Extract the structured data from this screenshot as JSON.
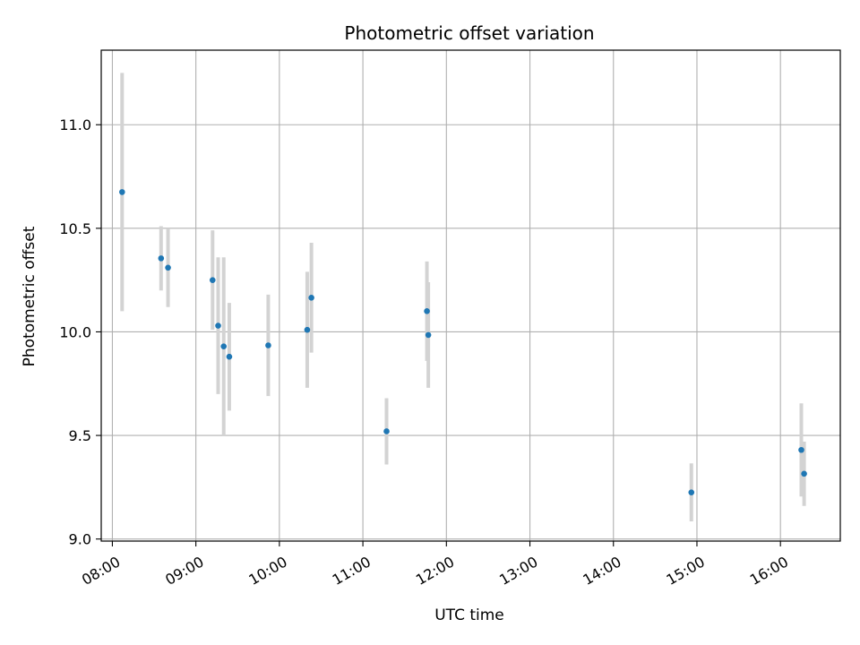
{
  "chart_data": {
    "type": "scatter",
    "title": "Photometric offset variation",
    "xlabel": "UTC time",
    "ylabel": "Photometric offset",
    "grid": true,
    "legend": "none",
    "xlim": [
      "07:52",
      "16:43"
    ],
    "ylim": [
      8.99,
      11.36
    ],
    "x_ticks": [
      "08:00",
      "09:00",
      "10:00",
      "11:00",
      "12:00",
      "13:00",
      "14:00",
      "15:00",
      "16:00"
    ],
    "y_ticks": [
      9.0,
      9.5,
      10.0,
      10.5,
      11.0
    ],
    "y_tick_labels": [
      "9.0",
      "9.5",
      "10.0",
      "10.5",
      "11.0"
    ],
    "colors": {
      "point": "#1f77b4",
      "errorbar": "#d3d3d3",
      "grid": "#b0b0b0"
    },
    "points": [
      {
        "x": "08:07",
        "y": 10.675,
        "yerr": 0.575
      },
      {
        "x": "08:35",
        "y": 10.355,
        "yerr": 0.155
      },
      {
        "x": "08:40",
        "y": 10.31,
        "yerr": 0.19
      },
      {
        "x": "09:12",
        "y": 10.25,
        "yerr": 0.24
      },
      {
        "x": "09:16",
        "y": 10.03,
        "yerr": 0.33
      },
      {
        "x": "09:20",
        "y": 9.93,
        "yerr": 0.43
      },
      {
        "x": "09:24",
        "y": 9.88,
        "yerr": 0.26
      },
      {
        "x": "09:52",
        "y": 9.935,
        "yerr": 0.245
      },
      {
        "x": "10:20",
        "y": 10.01,
        "yerr": 0.28
      },
      {
        "x": "10:23",
        "y": 10.165,
        "yerr": 0.265
      },
      {
        "x": "11:17",
        "y": 9.52,
        "yerr": 0.16
      },
      {
        "x": "11:46",
        "y": 10.1,
        "yerr": 0.24
      },
      {
        "x": "11:47",
        "y": 9.985,
        "yerr": 0.255
      },
      {
        "x": "14:56",
        "y": 9.225,
        "yerr": 0.14
      },
      {
        "x": "16:15",
        "y": 9.43,
        "yerr": 0.225
      },
      {
        "x": "16:17",
        "y": 9.315,
        "yerr": 0.155
      }
    ]
  }
}
